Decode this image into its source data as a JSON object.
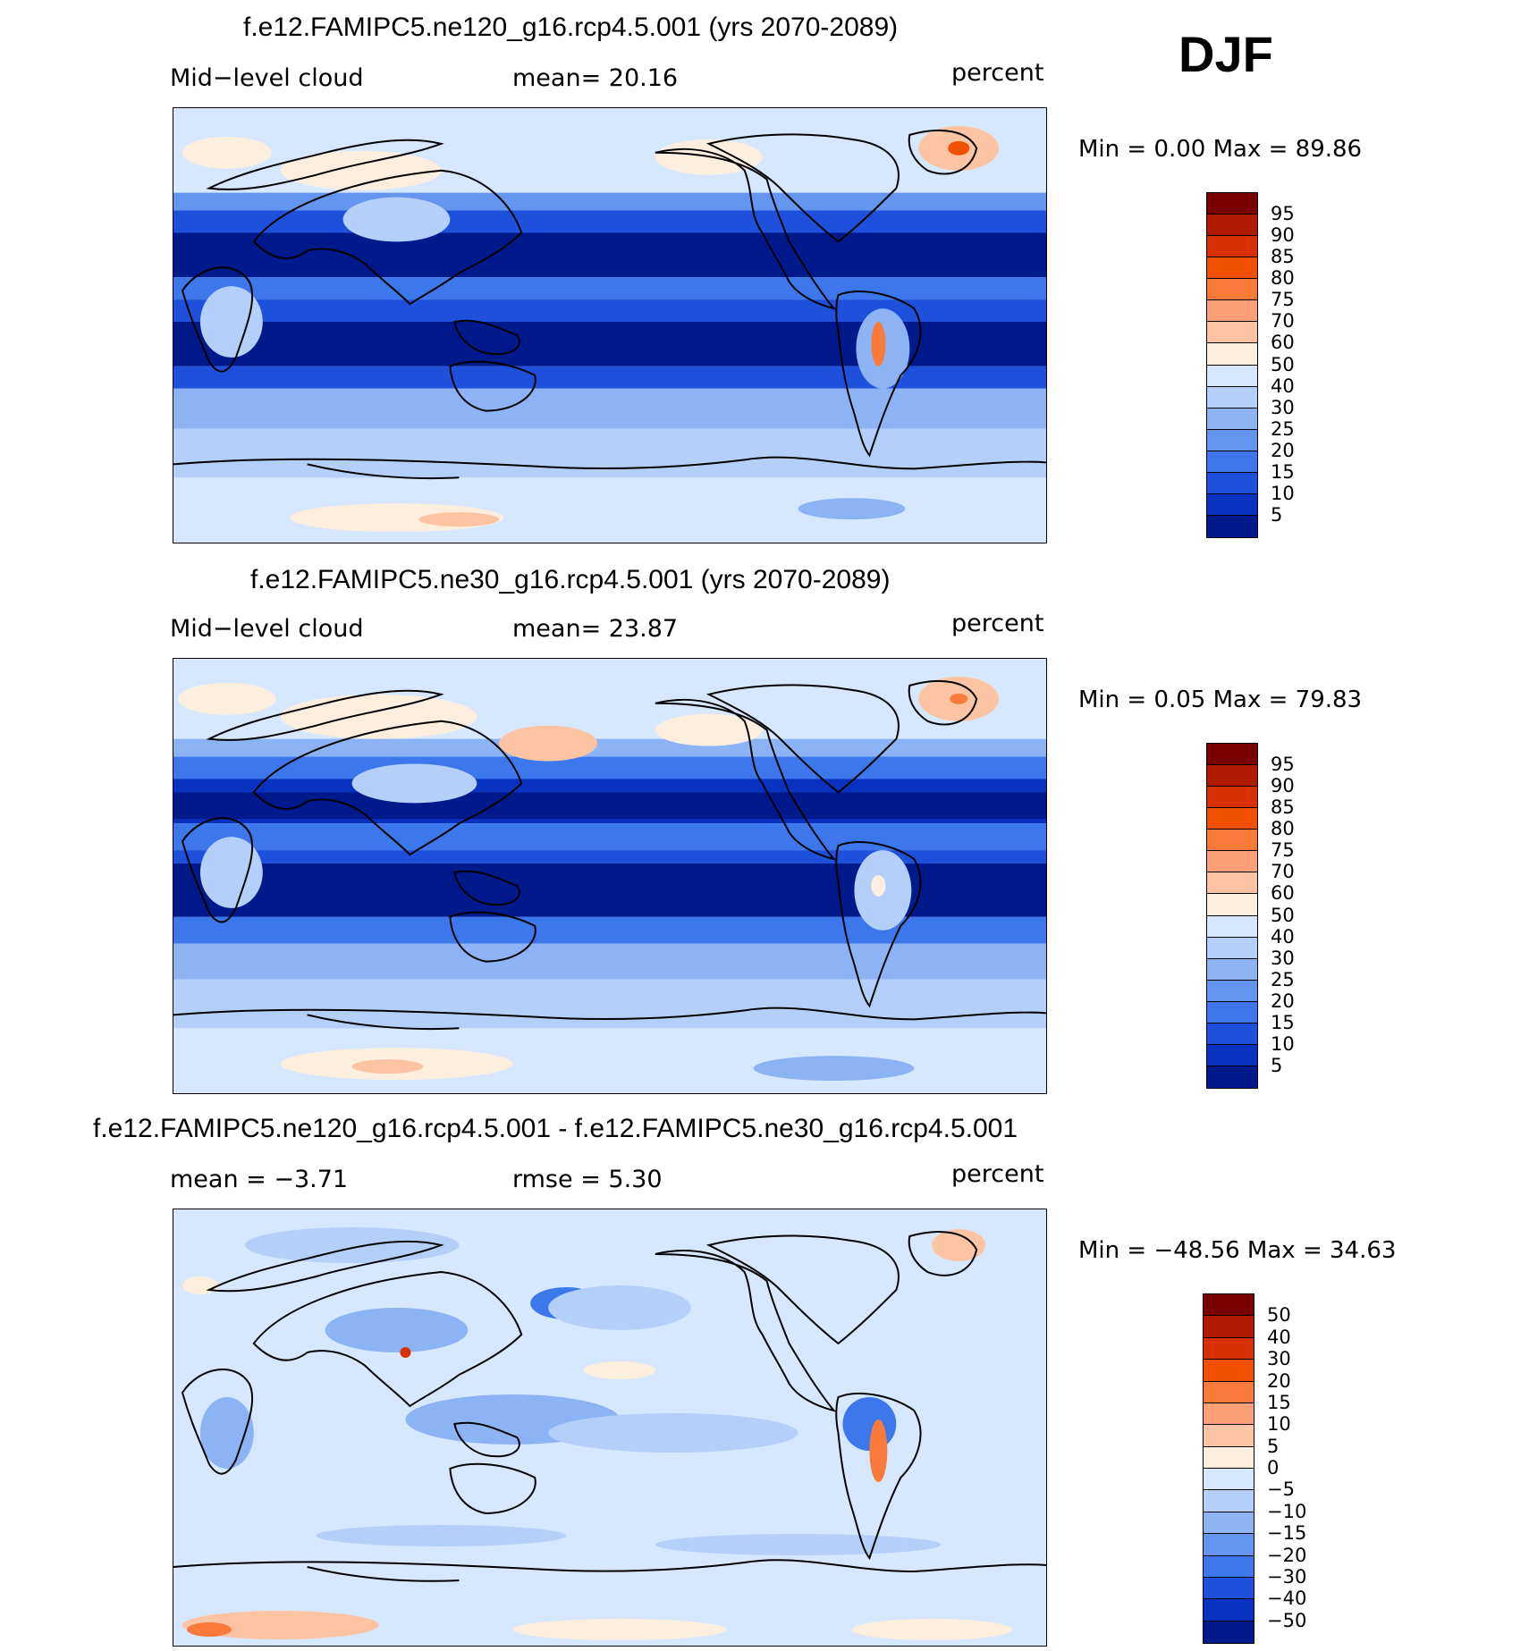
{
  "season": "DJF",
  "panels": [
    {
      "title": "f.e12.FAMIPC5.ne120_g16.rcp4.5.001 (yrs 2070-2089)",
      "left": "Mid−level cloud",
      "center": "mean=   20.16",
      "right": "percent",
      "minmax": "Min  =     0.00  Max  =    89.86",
      "colorbar": {
        "labels": [
          "95",
          "90",
          "85",
          "80",
          "75",
          "70",
          "60",
          "50",
          "40",
          "30",
          "25",
          "20",
          "15",
          "10",
          "5"
        ],
        "colors": [
          "#7a0000",
          "#b01a00",
          "#d83000",
          "#f05000",
          "#fa7a3c",
          "#fca078",
          "#fdc4a4",
          "#feeedd",
          "#d6e8ff",
          "#b4d0fa",
          "#8cb4f5",
          "#6496f0",
          "#3c78eb",
          "#1e50dc",
          "#0a32c0",
          "#001a8c"
        ]
      }
    },
    {
      "title": "f.e12.FAMIPC5.ne30_g16.rcp4.5.001 (yrs 2070-2089)",
      "left": "Mid−level cloud",
      "center": "mean=   23.87",
      "right": "percent",
      "minmax": "Min  =     0.05  Max  =    79.83",
      "colorbar": {
        "labels": [
          "95",
          "90",
          "85",
          "80",
          "75",
          "70",
          "60",
          "50",
          "40",
          "30",
          "25",
          "20",
          "15",
          "10",
          "5"
        ],
        "colors": [
          "#7a0000",
          "#b01a00",
          "#d83000",
          "#f05000",
          "#fa7a3c",
          "#fca078",
          "#fdc4a4",
          "#feeedd",
          "#d6e8ff",
          "#b4d0fa",
          "#8cb4f5",
          "#6496f0",
          "#3c78eb",
          "#1e50dc",
          "#0a32c0",
          "#001a8c"
        ]
      }
    },
    {
      "title": "f.e12.FAMIPC5.ne120_g16.rcp4.5.001 - f.e12.FAMIPC5.ne30_g16.rcp4.5.001",
      "left": "mean  =    −3.71",
      "center": "rmse  =     5.30",
      "right": "percent",
      "minmax": "Min  =  −48.56  Max  =    34.63",
      "colorbar": {
        "labels": [
          "50",
          "40",
          "30",
          "20",
          "15",
          "10",
          "5",
          "0",
          "−5",
          "−10",
          "−15",
          "−20",
          "−30",
          "−40",
          "−50"
        ],
        "colors": [
          "#7a0000",
          "#b01a00",
          "#d83000",
          "#f05000",
          "#fa7a3c",
          "#fca078",
          "#fdc4a4",
          "#feeedd",
          "#d6e8ff",
          "#b4d0fa",
          "#8cb4f5",
          "#6496f0",
          "#3c78eb",
          "#1e50dc",
          "#0a32c0",
          "#001a8c"
        ]
      }
    }
  ]
}
